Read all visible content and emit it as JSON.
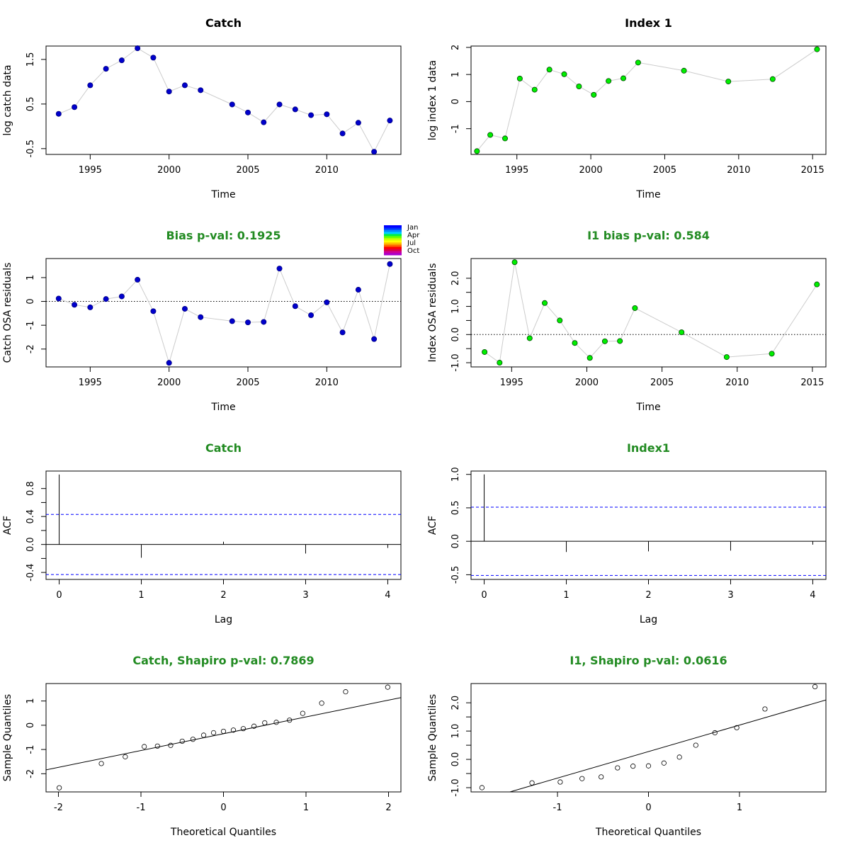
{
  "chart_data": [
    {
      "type": "line",
      "title": "Catch",
      "title_color": "#000000",
      "xlabel": "Time",
      "ylabel": "log catch data",
      "xlim": [
        1992.2,
        2014.7
      ],
      "ylim": [
        -0.63,
        1.8
      ],
      "xticks": [
        1995,
        2000,
        2005,
        2010
      ],
      "yticks": [
        -0.5,
        0.5,
        1.5
      ],
      "point_fill": "#0000cc",
      "point_stroke": "#000080",
      "line_color": "#cccccc",
      "x": [
        1993,
        1994,
        1995,
        1996,
        1997,
        1998,
        1999,
        2000,
        2001,
        2002,
        2004,
        2005,
        2006,
        2007,
        2008,
        2009,
        2010,
        2011,
        2012,
        2013,
        2014
      ],
      "y": [
        0.28,
        0.43,
        0.92,
        1.29,
        1.48,
        1.75,
        1.54,
        0.78,
        0.92,
        0.81,
        0.49,
        0.31,
        0.09,
        0.49,
        0.38,
        0.25,
        0.27,
        -0.16,
        0.08,
        -0.57,
        0.13
      ]
    },
    {
      "type": "line",
      "title": "Index 1",
      "title_color": "#000000",
      "xlabel": "Time",
      "ylabel": "log index 1 data",
      "xlim": [
        1991.9,
        2015.9
      ],
      "ylim": [
        -1.95,
        2.05
      ],
      "xticks": [
        1995,
        2000,
        2005,
        2010,
        2015
      ],
      "yticks": [
        -1,
        0,
        1,
        2
      ],
      "point_fill": "#00ee00",
      "point_stroke": "#004400",
      "line_color": "#cccccc",
      "x": [
        1992.3,
        1993.2,
        1994.2,
        1995.2,
        1996.2,
        1997.2,
        1998.2,
        1999.2,
        2000.2,
        2001.2,
        2002.2,
        2003.2,
        2006.3,
        2009.3,
        2012.3,
        2015.3
      ],
      "y": [
        -1.83,
        -1.23,
        -1.36,
        0.85,
        0.44,
        1.18,
        1.01,
        0.56,
        0.25,
        0.76,
        0.86,
        1.44,
        1.14,
        0.74,
        0.83,
        1.93
      ]
    },
    {
      "type": "line",
      "title": "Bias p-val: 0.1925",
      "title_color": "#228b22",
      "xlabel": "Time",
      "ylabel": "Catch OSA residuals",
      "xlim": [
        1992.2,
        2014.7
      ],
      "ylim": [
        -2.75,
        1.8
      ],
      "xticks": [
        1995,
        2000,
        2005,
        2010
      ],
      "yticks": [
        -2,
        -1,
        0,
        1
      ],
      "reference_line": 0,
      "point_fill": "#0000cc",
      "point_stroke": "#000080",
      "line_color": "#cccccc",
      "x": [
        1993,
        1994,
        1995,
        1996,
        1997,
        1998,
        1999,
        2000,
        2001,
        2002,
        2004,
        2005,
        2006,
        2007,
        2008,
        2009,
        2010,
        2011,
        2012,
        2013,
        2014
      ],
      "y": [
        0.12,
        -0.14,
        -0.25,
        0.1,
        0.21,
        0.91,
        -0.41,
        -2.58,
        -0.31,
        -0.66,
        -0.83,
        -0.88,
        -0.86,
        1.38,
        -0.2,
        -0.58,
        -0.04,
        -1.3,
        0.49,
        -1.58,
        1.57
      ],
      "legend": {
        "position": "top-right",
        "labels": [
          "Jan",
          "Apr",
          "Jul",
          "Oct"
        ],
        "colors": [
          "#0000ff",
          "#0033ff",
          "#0088ff",
          "#00ccff",
          "#00ee44",
          "#66ff00",
          "#ccff00",
          "#ffff00",
          "#ffbb00",
          "#ff6600",
          "#ff0000",
          "#dd0044",
          "#cc0099",
          "#aa00cc"
        ]
      }
    },
    {
      "type": "line",
      "title": "I1 bias p-val: 0.584",
      "title_color": "#228b22",
      "xlabel": "Time",
      "ylabel": "Index OSA residuals",
      "xlim": [
        1992.3,
        2015.9
      ],
      "ylim": [
        -1.15,
        2.7
      ],
      "xticks": [
        1995,
        2000,
        2005,
        2010,
        2015
      ],
      "yticks": [
        -1.0,
        0.0,
        1.0,
        2.0
      ],
      "ytick_labels": [
        "-1.0",
        "0.0",
        "1.0",
        "2.0"
      ],
      "yticks_minor": [
        -0.5,
        0.5,
        1.5
      ],
      "reference_line": 0,
      "point_fill": "#00ee00",
      "point_stroke": "#004400",
      "line_color": "#cccccc",
      "x": [
        1993.2,
        1994.2,
        1995.2,
        1996.2,
        1997.2,
        1998.2,
        1999.2,
        2000.2,
        2001.2,
        2002.2,
        2003.2,
        2006.3,
        2009.3,
        2012.3,
        2015.3
      ],
      "y": [
        -0.62,
        -1.0,
        2.57,
        -0.13,
        1.12,
        0.5,
        -0.3,
        -0.83,
        -0.24,
        -0.23,
        0.94,
        0.08,
        -0.8,
        -0.68,
        1.78
      ]
    },
    {
      "type": "bar",
      "subtype": "acf",
      "title": "Catch",
      "title_color": "#228b22",
      "xlabel": "Lag",
      "ylabel": "ACF",
      "xlim": [
        -0.16,
        4.16
      ],
      "ylim": [
        -0.5,
        1.05
      ],
      "xticks": [
        0,
        1,
        2,
        3,
        4
      ],
      "yticks": [
        -0.4,
        0.0,
        0.4,
        0.8
      ],
      "ytick_labels": [
        "-0.4",
        "0.0",
        "0.4",
        "0.8"
      ],
      "yticks_minor": [
        -0.2,
        0.2,
        0.6
      ],
      "confidence_bounds": [
        0.43,
        -0.43
      ],
      "categories": [
        0,
        1,
        2,
        3,
        4
      ],
      "values": [
        1.0,
        -0.19,
        0.04,
        -0.13,
        -0.05
      ]
    },
    {
      "type": "bar",
      "subtype": "acf",
      "title": "Index1",
      "title_color": "#228b22",
      "xlabel": "Lag",
      "ylabel": "ACF",
      "xlim": [
        -0.16,
        4.16
      ],
      "ylim": [
        -0.57,
        1.05
      ],
      "xticks": [
        0,
        1,
        2,
        3,
        4
      ],
      "yticks": [
        -0.5,
        0.0,
        0.5,
        1.0
      ],
      "ytick_labels": [
        "-0.5",
        "0.0",
        "0.5",
        "1.0"
      ],
      "confidence_bounds": [
        0.51,
        -0.51
      ],
      "categories": [
        0,
        1,
        2,
        3,
        4
      ],
      "values": [
        1.0,
        -0.16,
        -0.15,
        -0.14,
        -0.05
      ]
    },
    {
      "type": "scatter",
      "subtype": "qq",
      "title": "Catch, Shapiro p-val: 0.7869",
      "title_color": "#228b22",
      "xlabel": "Theoretical Quantiles",
      "ylabel": "Sample Quantiles",
      "xlim": [
        -2.15,
        2.15
      ],
      "ylim": [
        -2.75,
        1.72
      ],
      "xticks": [
        -2,
        -1,
        0,
        1,
        2
      ],
      "yticks": [
        -2,
        -1,
        0,
        1
      ],
      "reference_line": {
        "x": [
          -2.15,
          2.15
        ],
        "y": [
          -1.84,
          1.14
        ]
      },
      "x": [
        -1.99,
        -1.48,
        -1.19,
        -0.96,
        -0.8,
        -0.64,
        -0.5,
        -0.37,
        -0.24,
        -0.12,
        0.0,
        0.12,
        0.24,
        0.37,
        0.5,
        0.64,
        0.8,
        0.96,
        1.19,
        1.48,
        1.99
      ],
      "y": [
        -2.58,
        -1.58,
        -1.3,
        -0.88,
        -0.86,
        -0.83,
        -0.66,
        -0.58,
        -0.41,
        -0.31,
        -0.25,
        -0.2,
        -0.14,
        -0.04,
        0.1,
        0.12,
        0.21,
        0.49,
        0.91,
        1.38,
        1.57
      ]
    },
    {
      "type": "scatter",
      "subtype": "qq",
      "title": "I1, Shapiro p-val: 0.0616",
      "title_color": "#228b22",
      "xlabel": "Theoretical Quantiles",
      "ylabel": "Sample Quantiles",
      "xlim": [
        -1.95,
        1.95
      ],
      "ylim": [
        -1.15,
        2.68
      ],
      "xticks": [
        -1,
        0,
        1
      ],
      "yticks": [
        -1.0,
        0.0,
        1.0,
        2.0
      ],
      "ytick_labels": [
        "-1.0",
        "0.0",
        "1.0",
        "2.0"
      ],
      "yticks_minor": [
        -0.5,
        0.5,
        1.5
      ],
      "reference_line": {
        "x": [
          -1.95,
          1.95
        ],
        "y": [
          -1.55,
          2.1
        ]
      },
      "x": [
        -1.83,
        -1.28,
        -0.97,
        -0.73,
        -0.52,
        -0.34,
        -0.17,
        0.0,
        0.17,
        0.34,
        0.52,
        0.73,
        0.97,
        1.28,
        1.83
      ],
      "y": [
        -1.0,
        -0.83,
        -0.8,
        -0.68,
        -0.62,
        -0.3,
        -0.24,
        -0.23,
        -0.13,
        0.08,
        0.5,
        0.94,
        1.12,
        1.78,
        2.57
      ]
    }
  ]
}
